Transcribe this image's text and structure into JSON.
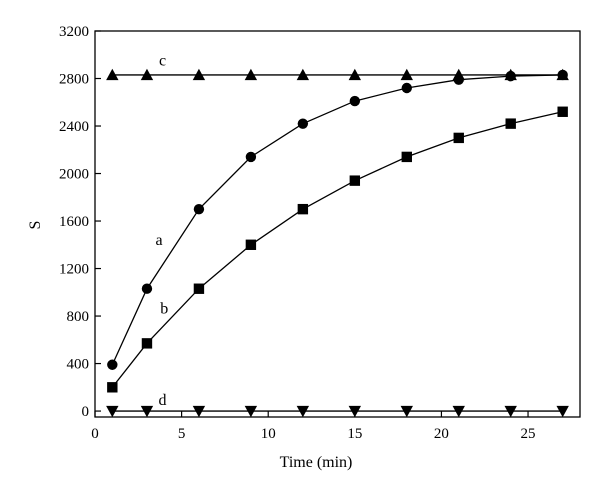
{
  "chart_data": {
    "type": "line",
    "xlabel": "Time (min)",
    "ylabel": "S",
    "xlim": [
      0,
      28
    ],
    "ylim": [
      -50,
      3200
    ],
    "x_ticks": [
      0,
      5,
      10,
      15,
      20,
      25
    ],
    "y_ticks": [
      0,
      400,
      800,
      1200,
      1600,
      2000,
      2400,
      2800,
      3200
    ],
    "grid": false,
    "series": [
      {
        "name": "a",
        "marker": "circle",
        "x": [
          1,
          3,
          6,
          9,
          12,
          15,
          18,
          21,
          24,
          27
        ],
        "y": [
          390,
          1030,
          1700,
          2140,
          2420,
          2610,
          2720,
          2790,
          2820,
          2830
        ]
      },
      {
        "name": "b",
        "marker": "square",
        "x": [
          1,
          3,
          6,
          9,
          12,
          15,
          18,
          21,
          24,
          27
        ],
        "y": [
          200,
          570,
          1030,
          1400,
          1700,
          1940,
          2140,
          2300,
          2420,
          2520
        ]
      },
      {
        "name": "c",
        "marker": "triangle-up",
        "x": [
          1,
          3,
          6,
          9,
          12,
          15,
          18,
          21,
          24,
          27
        ],
        "y": [
          2830,
          2830,
          2830,
          2830,
          2830,
          2830,
          2830,
          2830,
          2830,
          2830
        ]
      },
      {
        "name": "d",
        "marker": "triangle-down",
        "x": [
          1,
          3,
          6,
          9,
          12,
          15,
          18,
          21,
          24,
          27
        ],
        "y": [
          0,
          0,
          0,
          0,
          0,
          0,
          0,
          0,
          0,
          0
        ]
      }
    ],
    "annotations": [
      {
        "text": "a",
        "series": "a"
      },
      {
        "text": "b",
        "series": "b"
      },
      {
        "text": "c",
        "series": "c"
      },
      {
        "text": "d",
        "series": "d"
      }
    ]
  }
}
